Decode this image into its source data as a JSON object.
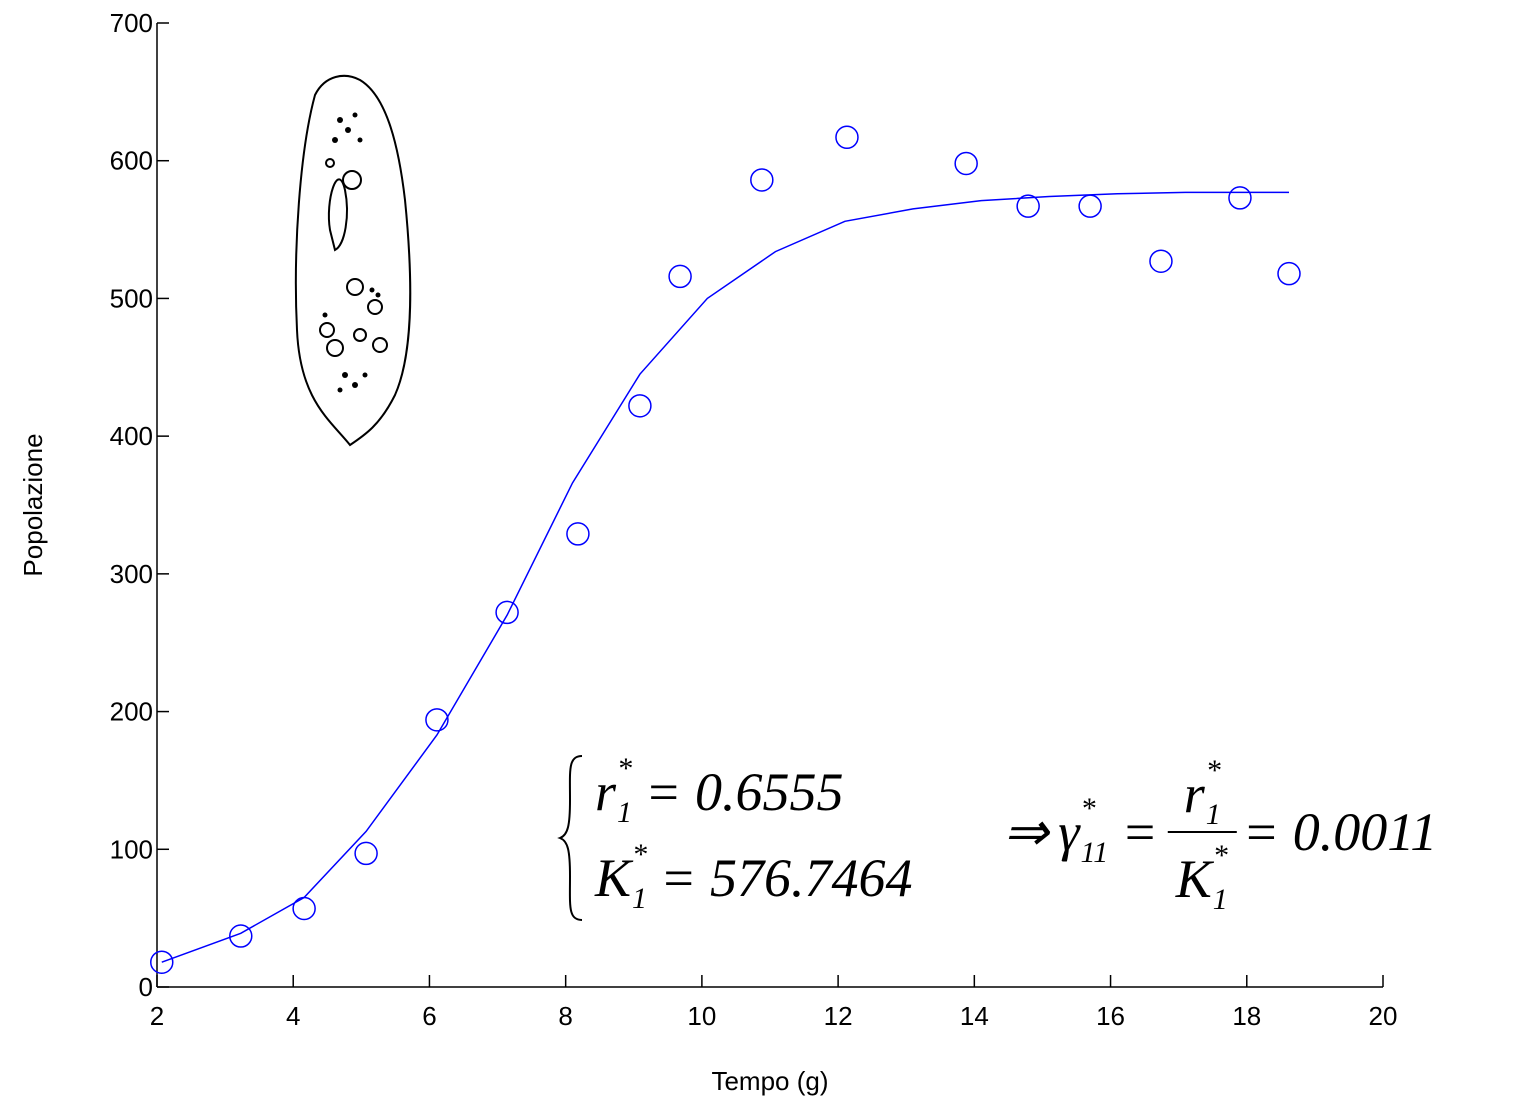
{
  "chart_data": {
    "type": "scatter",
    "x_label": "Tempo (g)",
    "y_label": "Popolazione",
    "xlim": [
      2,
      20
    ],
    "ylim": [
      0,
      700
    ],
    "xticks": [
      2,
      4,
      6,
      8,
      10,
      12,
      14,
      16,
      18,
      20
    ],
    "yticks": [
      0,
      100,
      200,
      300,
      400,
      500,
      600,
      700
    ],
    "series": [
      {
        "kind": "points",
        "color": "#0000ff",
        "x": [
          2.07,
          3.23,
          4.16,
          5.07,
          6.11,
          7.14,
          8.18,
          9.09,
          9.68,
          10.88,
          12.13,
          13.88,
          14.79,
          15.7,
          16.74,
          17.9,
          18.62
        ],
        "values": [
          18,
          37,
          57,
          97,
          194,
          272,
          329,
          422,
          516,
          586,
          617,
          598,
          567,
          567,
          527,
          573,
          518
        ]
      },
      {
        "kind": "line",
        "color": "#0000ff",
        "x": [
          2.07,
          3.23,
          4.16,
          5.07,
          6.11,
          7.14,
          8.1,
          9.09,
          10.08,
          11.08,
          12.1,
          13.1,
          14.1,
          15.1,
          16.1,
          17.1,
          18.62
        ],
        "values": [
          18,
          39,
          65,
          113,
          183,
          270,
          366,
          445,
          500,
          534,
          556,
          565,
          571,
          574,
          576,
          577,
          577
        ]
      }
    ],
    "equations": [
      {
        "symbol": "r",
        "sub": "1",
        "sup": "*",
        "rhs": "= 0.6555"
      },
      {
        "symbol": "K",
        "sub": "1",
        "sup": "*",
        "rhs": "= 576.7464"
      }
    ],
    "result": {
      "arrow": "⇒",
      "symbol": "γ",
      "sub": "11",
      "sup": "*",
      "eq": "=",
      "num": {
        "symbol": "r",
        "sub": "1",
        "sup": "*"
      },
      "den": {
        "symbol": "K",
        "sub": "1",
        "sup": "*"
      },
      "rhs": "= 0.0011"
    }
  }
}
